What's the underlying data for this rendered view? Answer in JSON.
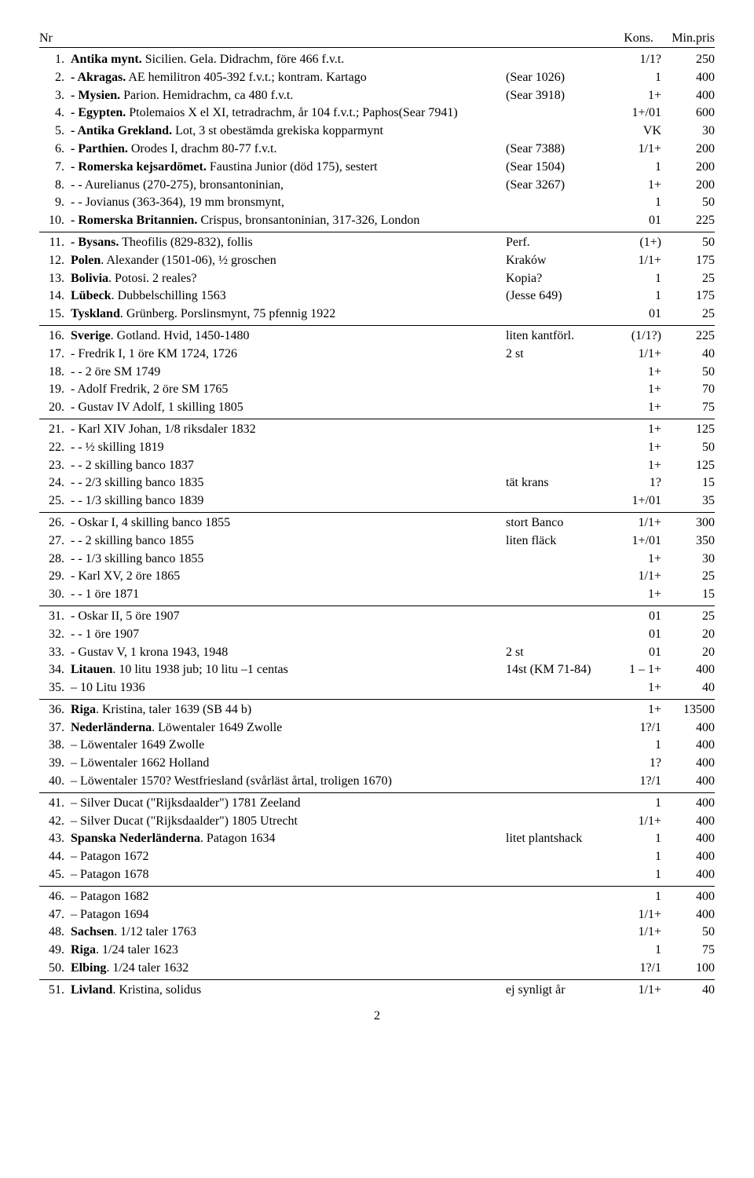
{
  "header": {
    "nr": "Nr",
    "kons": "Kons.",
    "min": "Min.pris"
  },
  "pageNumber": "2",
  "groups": [
    {
      "rows": [
        {
          "nr": "1.",
          "desc": "<b>Antika mynt.</b> Sicilien. Gela. Didrachm, före 466 f.v.t.",
          "note": "",
          "kons": "1/1?",
          "min": "250"
        },
        {
          "nr": "2.",
          "desc": "<b>- Akragas.</b> AE hemilitron 405-392 f.v.t.; kontram. Kartago",
          "note": "(Sear 1026)",
          "kons": "1",
          "min": "400"
        },
        {
          "nr": "3.",
          "desc": "<b>- Mysien.</b> Parion. Hemidrachm, ca 480 f.v.t.",
          "note": "(Sear 3918)",
          "kons": "1+",
          "min": "400"
        },
        {
          "nr": "4.",
          "desc": "<b>- Egypten.</b> Ptolemaios X el XI, tetradrachm, år 104 f.v.t.; Paphos(Sear 7941)",
          "note": "",
          "kons": "1+/01",
          "min": "600"
        },
        {
          "nr": "5.",
          "desc": "<b>- Antika Grekland.</b> Lot, 3 st obestämda grekiska kopparmynt",
          "note": "",
          "kons": "VK",
          "min": "30"
        },
        {
          "nr": "6.",
          "desc": "<b>- Parthien.</b> Orodes I, drachm 80-77 f.v.t.",
          "note": "(Sear 7388)",
          "kons": "1/1+",
          "min": "200"
        },
        {
          "nr": "7.",
          "desc": "<b>- Romerska kejsardömet.</b> Faustina Junior (död 175), sestert",
          "note": "(Sear 1504)",
          "kons": "1",
          "min": "200"
        },
        {
          "nr": "8.",
          "desc": "- - Aurelianus (270-275), bronsantoninian,",
          "note": "(Sear 3267)",
          "kons": "1+",
          "min": "200"
        },
        {
          "nr": "9.",
          "desc": "- - Jovianus (363-364), 19 mm bronsmynt,",
          "note": "",
          "kons": "1",
          "min": "50"
        },
        {
          "nr": "10.",
          "desc": "<b>- Romerska Britannien.</b> Crispus, bronsantoninian, 317-326, London",
          "note": "",
          "kons": "01",
          "min": "225"
        }
      ]
    },
    {
      "rows": [
        {
          "nr": "11.",
          "desc": "<b>- Bysans.</b> Theofilis (829-832), follis",
          "note": "Perf.",
          "kons": "(1+)",
          "min": "50"
        },
        {
          "nr": "12.",
          "desc": "<b>Polen</b>. Alexander (1501-06), ½ groschen",
          "note": "Kraków",
          "kons": "1/1+",
          "min": "175"
        },
        {
          "nr": "13.",
          "desc": "<b>Bolivia</b>. Potosi. 2 reales?",
          "note": "Kopia?",
          "kons": "1",
          "min": "25"
        },
        {
          "nr": "14.",
          "desc": "<b>Lübeck</b>. Dubbelschilling 1563",
          "note": "(Jesse 649)",
          "kons": "1",
          "min": "175"
        },
        {
          "nr": "15.",
          "desc": "<b>Tyskland</b>. Grünberg. Porslinsmynt, 75 pfennig 1922",
          "note": "",
          "kons": "01",
          "min": "25"
        }
      ]
    },
    {
      "rows": [
        {
          "nr": "16.",
          "desc": "<b>Sverige</b>. Gotland. Hvid, 1450-1480",
          "note": "liten kantförl.",
          "kons": "(1/1?)",
          "min": "225"
        },
        {
          "nr": "17.",
          "desc": "- Fredrik I, 1 öre KM 1724, 1726",
          "note": "2 st",
          "kons": "1/1+",
          "min": "40"
        },
        {
          "nr": "18.",
          "desc": "- - 2 öre SM 1749",
          "note": "",
          "kons": "1+",
          "min": "50"
        },
        {
          "nr": "19.",
          "desc": "- Adolf Fredrik, 2 öre SM 1765",
          "note": "",
          "kons": "1+",
          "min": "70"
        },
        {
          "nr": "20.",
          "desc": "- Gustav IV Adolf, 1 skilling 1805",
          "note": "",
          "kons": "1+",
          "min": "75"
        }
      ]
    },
    {
      "rows": [
        {
          "nr": "21.",
          "desc": "- Karl XIV Johan, 1/8 riksdaler 1832",
          "note": "",
          "kons": "1+",
          "min": "125"
        },
        {
          "nr": "22.",
          "desc": "- - ½ skilling 1819",
          "note": "",
          "kons": "1+",
          "min": "50"
        },
        {
          "nr": "23.",
          "desc": "- - 2 skilling banco 1837",
          "note": "",
          "kons": "1+",
          "min": "125"
        },
        {
          "nr": "24.",
          "desc": "- - 2/3 skilling banco 1835",
          "note": "tät krans",
          "kons": "1?",
          "min": "15"
        },
        {
          "nr": "25.",
          "desc": "- - 1/3 skilling banco 1839",
          "note": "",
          "kons": "1+/01",
          "min": "35"
        }
      ]
    },
    {
      "rows": [
        {
          "nr": "26.",
          "desc": "- Oskar I, 4 skilling banco 1855",
          "note": "stort Banco",
          "kons": "1/1+",
          "min": "300"
        },
        {
          "nr": "27.",
          "desc": "- - 2 skilling banco 1855",
          "note": "liten fläck",
          "kons": "1+/01",
          "min": "350"
        },
        {
          "nr": "28.",
          "desc": "- - 1/3 skilling banco 1855",
          "note": "",
          "kons": "1+",
          "min": "30"
        },
        {
          "nr": "29.",
          "desc": "- Karl XV, 2 öre 1865",
          "note": "",
          "kons": "1/1+",
          "min": "25"
        },
        {
          "nr": "30.",
          "desc": "- - 1 öre 1871",
          "note": "",
          "kons": "1+",
          "min": "15"
        }
      ]
    },
    {
      "rows": [
        {
          "nr": "31.",
          "desc": "- Oskar II, 5 öre 1907",
          "note": "",
          "kons": "01",
          "min": "25"
        },
        {
          "nr": "32.",
          "desc": "- - 1 öre 1907",
          "note": "",
          "kons": "01",
          "min": "20"
        },
        {
          "nr": "33.",
          "desc": "- Gustav V, 1 krona 1943, 1948",
          "note": "2 st",
          "kons": "01",
          "min": "20"
        },
        {
          "nr": "34.",
          "desc": "<b>Litauen</b>. 10 litu 1938 jub; 10 litu –1 centas",
          "note": "14st (KM 71-84)",
          "kons": "1 – 1+",
          "min": "400"
        },
        {
          "nr": "35.",
          "desc": "– 10 Litu 1936",
          "note": "",
          "kons": "1+",
          "min": "40"
        }
      ]
    },
    {
      "rows": [
        {
          "nr": "36.",
          "desc": "<b>Riga</b>. Kristina, taler 1639 (SB 44 b)",
          "note": "",
          "kons": "1+",
          "min": "13500"
        },
        {
          "nr": "37.",
          "desc": "<b>Nederländerna</b>. Löwentaler 1649 Zwolle",
          "note": "",
          "kons": "1?/1",
          "min": "400"
        },
        {
          "nr": "38.",
          "desc": "– Löwentaler 1649 Zwolle",
          "note": "",
          "kons": "1",
          "min": "400"
        },
        {
          "nr": "39.",
          "desc": "– Löwentaler 1662 Holland",
          "note": "",
          "kons": "1?",
          "min": "400"
        },
        {
          "nr": "40.",
          "desc": "– Löwentaler 1570? Westfriesland (svårläst årtal, troligen 1670)",
          "note": "",
          "kons": "1?/1",
          "min": "400"
        }
      ]
    },
    {
      "rows": [
        {
          "nr": "41.",
          "desc": "– Silver Ducat (\"Rijksdaalder\") 1781 Zeeland",
          "note": "",
          "kons": "1",
          "min": "400"
        },
        {
          "nr": "42.",
          "desc": "– Silver Ducat (\"Rijksdaalder\") 1805 Utrecht",
          "note": "",
          "kons": "1/1+",
          "min": "400"
        },
        {
          "nr": "43.",
          "desc": "<b>Spanska Nederländerna</b>. Patagon 1634",
          "note": "litet plantshack",
          "kons": "1",
          "min": "400"
        },
        {
          "nr": "44.",
          "desc": "– Patagon 1672",
          "note": "",
          "kons": "1",
          "min": "400"
        },
        {
          "nr": "45.",
          "desc": "– Patagon 1678",
          "note": "",
          "kons": "1",
          "min": "400"
        }
      ]
    },
    {
      "rows": [
        {
          "nr": "46.",
          "desc": "– Patagon 1682",
          "note": "",
          "kons": "1",
          "min": "400"
        },
        {
          "nr": "47.",
          "desc": "– Patagon 1694",
          "note": "",
          "kons": "1/1+",
          "min": "400"
        },
        {
          "nr": "48.",
          "desc": "<b>Sachsen</b>. 1/12 taler 1763",
          "note": "",
          "kons": "1/1+",
          "min": "50"
        },
        {
          "nr": "49.",
          "desc": "<b>Riga</b>. 1/24 taler 1623",
          "note": "",
          "kons": "1",
          "min": "75"
        },
        {
          "nr": "50.",
          "desc": "<b>Elbing</b>. 1/24 taler 1632",
          "note": "",
          "kons": "1?/1",
          "min": "100"
        }
      ]
    },
    {
      "rows": [
        {
          "nr": "51.",
          "desc": "<b>Livland</b>. Kristina, solidus",
          "note": "ej synligt år",
          "kons": "1/1+",
          "min": "40"
        }
      ]
    }
  ]
}
